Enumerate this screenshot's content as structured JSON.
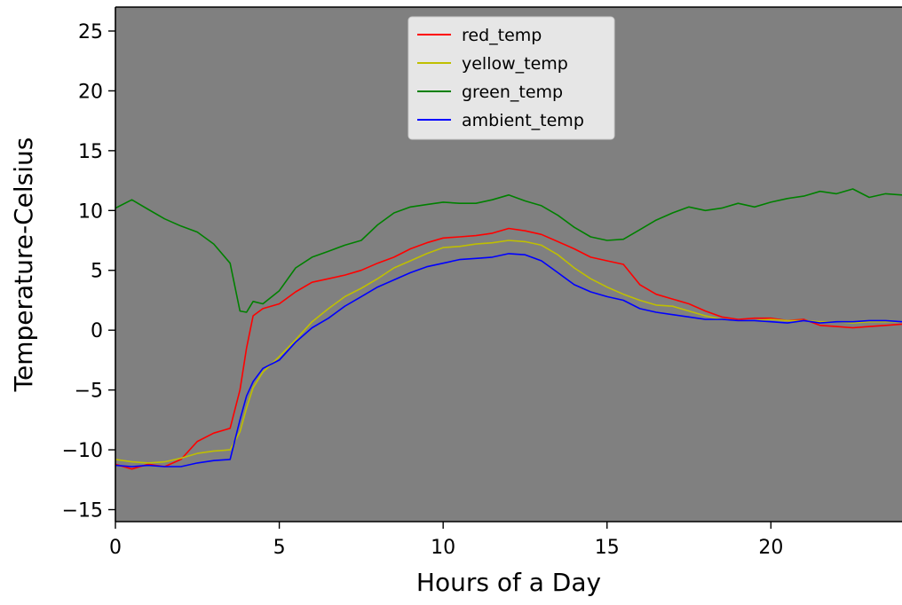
{
  "chart_data": {
    "type": "line",
    "title": "",
    "xlabel": "Hours of a Day",
    "ylabel": "Temperature-Celsius",
    "xlim": [
      0,
      24
    ],
    "ylim": [
      -16,
      27
    ],
    "x_ticks": [
      0,
      5,
      10,
      15,
      20
    ],
    "y_ticks": [
      -15,
      -10,
      -5,
      0,
      5,
      10,
      15,
      20,
      25
    ],
    "grid": false,
    "plot_background": "#808080",
    "legend": {
      "placement": "top-center"
    },
    "x": [
      0,
      0.5,
      1,
      1.5,
      2,
      2.5,
      3,
      3.5,
      3.8,
      4,
      4.2,
      4.5,
      5,
      5.5,
      6,
      6.5,
      7,
      7.5,
      8,
      8.5,
      9,
      9.5,
      10,
      10.5,
      11,
      11.5,
      12,
      12.5,
      13,
      13.5,
      14,
      14.5,
      15,
      15.5,
      16,
      16.5,
      17,
      17.5,
      18,
      18.5,
      19,
      19.5,
      20,
      20.5,
      21,
      21.5,
      22,
      22.5,
      23,
      23.5,
      24
    ],
    "series": [
      {
        "name": "red_temp",
        "color": "#ff0000",
        "values": [
          -11.2,
          -11.6,
          -11.2,
          -11.4,
          -10.8,
          -9.3,
          -8.6,
          -8.2,
          -5,
          -1.5,
          1.2,
          1.8,
          2.2,
          3.2,
          4,
          4.3,
          4.6,
          5,
          5.6,
          6.1,
          6.8,
          7.3,
          7.7,
          7.8,
          7.9,
          8.1,
          8.5,
          8.3,
          8,
          7.4,
          6.8,
          6.1,
          5.8,
          5.5,
          3.8,
          3,
          2.6,
          2.2,
          1.6,
          1.1,
          0.9,
          1,
          1,
          0.8,
          0.9,
          0.4,
          0.3,
          0.2,
          0.3,
          0.4,
          0.5
        ]
      },
      {
        "name": "yellow_temp",
        "color": "#bfbf00",
        "values": [
          -10.8,
          -11,
          -11.1,
          -11,
          -10.7,
          -10.3,
          -10.1,
          -10,
          -8.5,
          -6.5,
          -4.8,
          -3.5,
          -2.2,
          -0.8,
          0.7,
          1.8,
          2.8,
          3.5,
          4.3,
          5.2,
          5.8,
          6.4,
          6.9,
          7,
          7.2,
          7.3,
          7.5,
          7.4,
          7.1,
          6.3,
          5.2,
          4.3,
          3.6,
          3,
          2.5,
          2.1,
          2,
          1.6,
          1.2,
          0.9,
          0.8,
          0.8,
          0.9,
          0.8,
          0.8,
          0.7,
          0.7,
          0.6,
          0.7,
          0.7,
          0.7
        ]
      },
      {
        "name": "green_temp",
        "color": "#008000",
        "values": [
          10.2,
          10.9,
          10.1,
          9.3,
          8.7,
          8.2,
          7.2,
          5.6,
          1.6,
          1.5,
          2.4,
          2.2,
          3.3,
          5.2,
          6.1,
          6.6,
          7.1,
          7.5,
          8.8,
          9.8,
          10.3,
          10.5,
          10.7,
          10.6,
          10.6,
          10.9,
          11.3,
          10.8,
          10.4,
          9.6,
          8.6,
          7.8,
          7.5,
          7.6,
          8.4,
          9.2,
          9.8,
          10.3,
          10,
          10.2,
          10.6,
          10.3,
          10.7,
          11,
          11.2,
          11.6,
          11.4,
          11.8,
          11.1,
          11.4,
          11.3
        ]
      },
      {
        "name": "ambient_temp",
        "color": "#0000ff",
        "values": [
          -11.3,
          -11.4,
          -11.3,
          -11.4,
          -11.4,
          -11.1,
          -10.9,
          -10.8,
          -7.5,
          -5.5,
          -4.3,
          -3.2,
          -2.5,
          -1,
          0.2,
          1,
          2,
          2.8,
          3.6,
          4.2,
          4.8,
          5.3,
          5.6,
          5.9,
          6,
          6.1,
          6.4,
          6.3,
          5.8,
          4.8,
          3.8,
          3.2,
          2.8,
          2.5,
          1.8,
          1.5,
          1.3,
          1.1,
          0.9,
          0.9,
          0.8,
          0.8,
          0.7,
          0.6,
          0.8,
          0.6,
          0.7,
          0.7,
          0.8,
          0.8,
          0.7
        ]
      }
    ]
  }
}
